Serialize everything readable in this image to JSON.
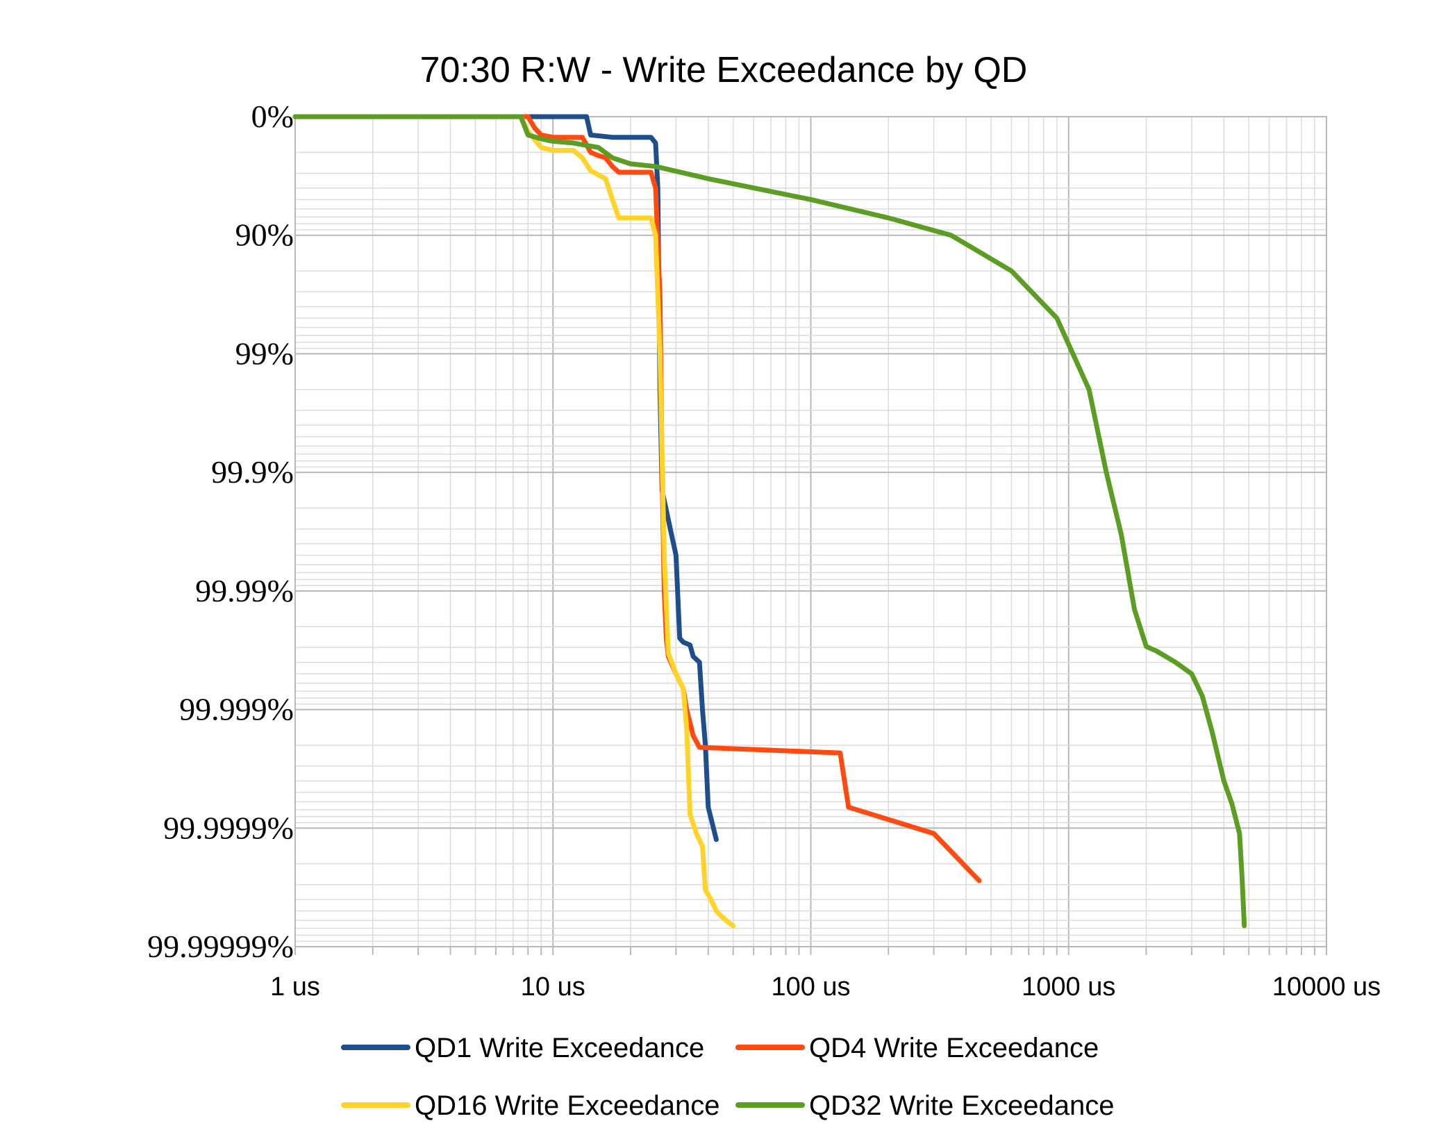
{
  "chart_data": {
    "type": "line",
    "title": "70:30 R:W - Write Exceedance by QD",
    "xlabel": "",
    "ylabel": "",
    "x_scale": "log",
    "x_range_us": [
      1,
      10000
    ],
    "x_ticks": [
      1,
      10,
      100,
      1000,
      10000
    ],
    "x_tick_labels": [
      "1 us",
      "10 us",
      "100 us",
      "1000 us",
      "10000 us"
    ],
    "y_scale": "exceedance (log of 1 - percentile)",
    "y_range_percent": [
      0,
      99.99999
    ],
    "y_tick_values": [
      0,
      90,
      99,
      99.9,
      99.99,
      99.999,
      99.9999,
      99.99999
    ],
    "y_tick_labels": [
      "0%",
      "90%",
      "99%",
      "99.9%",
      "99.99%",
      "99.999%",
      "99.9999%",
      "99.99999%"
    ],
    "grid": true,
    "legend_position": "bottom",
    "series": [
      {
        "name": "QD1 Write Exceedance",
        "color": "#1f4e8c",
        "points": [
          [
            1,
            0
          ],
          [
            13.5,
            0
          ],
          [
            14,
            30
          ],
          [
            17,
            33
          ],
          [
            24,
            33
          ],
          [
            25,
            40
          ],
          [
            25.5,
            75
          ],
          [
            26,
            99.5
          ],
          [
            26.5,
            99.93
          ],
          [
            28,
            99.96
          ],
          [
            30,
            99.98
          ],
          [
            31,
            99.996
          ],
          [
            32,
            99.9963
          ],
          [
            34,
            99.9965
          ],
          [
            35,
            99.9972
          ],
          [
            37,
            99.9975
          ],
          [
            38,
            99.999
          ],
          [
            39,
            99.9995
          ],
          [
            40,
            99.99985
          ],
          [
            43,
            99.99992
          ]
        ]
      },
      {
        "name": "QD4 Write Exceedance",
        "color": "#ff4a12",
        "points": [
          [
            1,
            0
          ],
          [
            8,
            0
          ],
          [
            8.5,
            20
          ],
          [
            9,
            30
          ],
          [
            10,
            33
          ],
          [
            13,
            33
          ],
          [
            14,
            50
          ],
          [
            15,
            53
          ],
          [
            16,
            55
          ],
          [
            17,
            62
          ],
          [
            18,
            66
          ],
          [
            24,
            66
          ],
          [
            25,
            75
          ],
          [
            26,
            97
          ],
          [
            26.5,
            99.9
          ],
          [
            27,
            99.99
          ],
          [
            27.5,
            99.996
          ],
          [
            28,
            99.9972
          ],
          [
            30,
            99.998
          ],
          [
            32,
            99.9985
          ],
          [
            33,
            99.999
          ],
          [
            35,
            99.9994
          ],
          [
            37,
            99.99952
          ],
          [
            130,
            99.99957
          ],
          [
            140,
            99.99985
          ],
          [
            300,
            99.99991
          ],
          [
            450,
            99.999964
          ]
        ]
      },
      {
        "name": "QD16 Write Exceedance",
        "color": "#ffd32a",
        "points": [
          [
            1,
            0
          ],
          [
            7.5,
            0
          ],
          [
            8,
            25
          ],
          [
            9,
            45
          ],
          [
            10,
            48
          ],
          [
            12,
            48
          ],
          [
            13,
            55
          ],
          [
            14,
            65
          ],
          [
            16,
            70
          ],
          [
            17,
            80
          ],
          [
            18,
            86
          ],
          [
            24,
            86
          ],
          [
            25,
            90
          ],
          [
            26,
            99
          ],
          [
            27,
            99.98
          ],
          [
            28,
            99.997
          ],
          [
            30,
            99.998
          ],
          [
            32,
            99.9985
          ],
          [
            33,
            99.9993
          ],
          [
            34,
            99.99987
          ],
          [
            36,
            99.99991
          ],
          [
            38,
            99.99993
          ],
          [
            39,
            99.99997
          ],
          [
            41,
            99.999975
          ],
          [
            43,
            99.99998
          ],
          [
            45,
            99.999982
          ],
          [
            48,
            99.999984
          ],
          [
            50,
            99.999985
          ]
        ]
      },
      {
        "name": "QD32 Write Exceedance",
        "color": "#5c9e23",
        "points": [
          [
            1,
            0
          ],
          [
            7.5,
            0
          ],
          [
            8,
            30
          ],
          [
            9,
            35
          ],
          [
            10,
            38
          ],
          [
            12,
            40
          ],
          [
            15,
            45
          ],
          [
            17,
            55
          ],
          [
            20,
            60
          ],
          [
            25,
            62
          ],
          [
            40,
            70
          ],
          [
            100,
            80
          ],
          [
            200,
            86
          ],
          [
            350,
            90
          ],
          [
            600,
            95
          ],
          [
            900,
            98
          ],
          [
            1000,
            98.8
          ],
          [
            1200,
            99.5
          ],
          [
            1400,
            99.9
          ],
          [
            1600,
            99.97
          ],
          [
            1800,
            99.993
          ],
          [
            2000,
            99.9966
          ],
          [
            2200,
            99.9969
          ],
          [
            2600,
            99.9975
          ],
          [
            3000,
            99.998
          ],
          [
            3300,
            99.9987
          ],
          [
            3600,
            99.99935
          ],
          [
            4000,
            99.99975
          ],
          [
            4300,
            99.99984
          ],
          [
            4600,
            99.99991
          ],
          [
            4700,
            99.99996
          ],
          [
            4800,
            99.999985
          ]
        ]
      }
    ]
  }
}
